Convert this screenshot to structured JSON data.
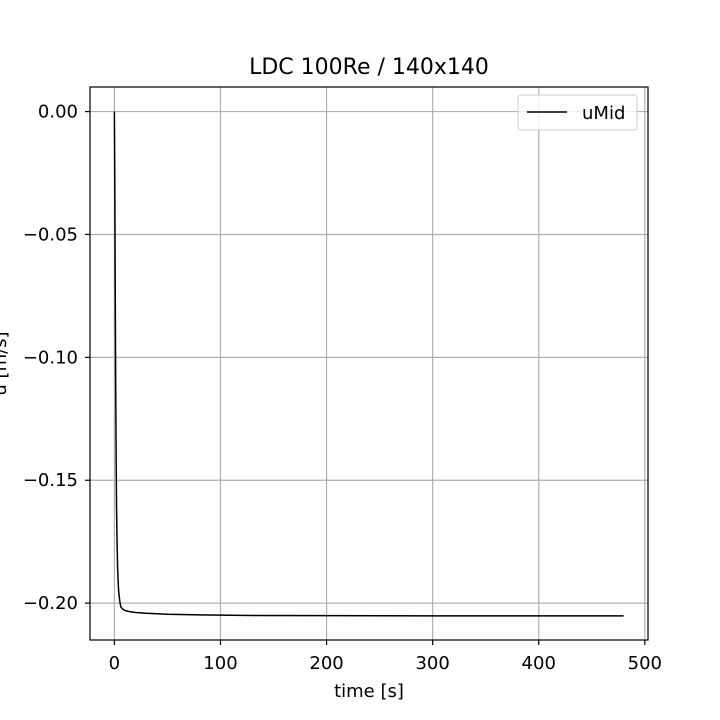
{
  "chart_data": {
    "type": "line",
    "title": "LDC 100Re / 140x140",
    "xlabel": "time [s]",
    "ylabel": "u [m/s]",
    "xlim": [
      -23,
      503
    ],
    "ylim": [
      -0.215,
      0.01
    ],
    "xticks": [
      0,
      100,
      200,
      300,
      400,
      500
    ],
    "yticks": [
      0.0,
      -0.05,
      -0.1,
      -0.15,
      -0.2
    ],
    "xtick_labels": [
      "0",
      "100",
      "200",
      "300",
      "400",
      "500"
    ],
    "ytick_labels": [
      "0.00",
      "−0.05",
      "−0.10",
      "−0.15",
      "−0.20"
    ],
    "grid": true,
    "legend": {
      "position": "top-right",
      "entries": [
        "uMid"
      ]
    },
    "series": [
      {
        "name": "uMid",
        "color": "#000000",
        "x": [
          0,
          0.5,
          0.8,
          1.2,
          1.6,
          2,
          2.5,
          3,
          3.5,
          4,
          5,
          6,
          8,
          10,
          15,
          20,
          30,
          50,
          80,
          120,
          200,
          300,
          400,
          480
        ],
        "y": [
          0,
          -0.04,
          -0.075,
          -0.11,
          -0.138,
          -0.16,
          -0.175,
          -0.185,
          -0.191,
          -0.195,
          -0.199,
          -0.2015,
          -0.2025,
          -0.203,
          -0.2035,
          -0.2038,
          -0.2041,
          -0.2045,
          -0.2048,
          -0.205,
          -0.2051,
          -0.2052,
          -0.2052,
          -0.2052
        ]
      }
    ]
  }
}
